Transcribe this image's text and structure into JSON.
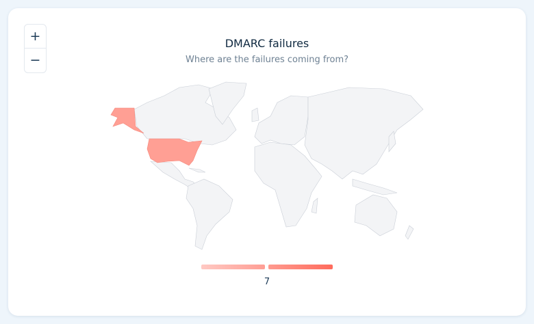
{
  "header": {
    "title": "DMARC failures",
    "subtitle": "Where are the failures coming from?"
  },
  "zoom_controls": {
    "zoom_in": "+",
    "zoom_out": "−"
  },
  "map": {
    "highlighted_regions": [
      "United States",
      "Alaska"
    ],
    "highlight_color": "#ff9f94",
    "land_color": "#f3f4f6",
    "border_color": "#c9ced6"
  },
  "legend": {
    "value": "7",
    "gradient": [
      "#ffc9c3",
      "#ff9a8f",
      "#ff6b5c"
    ]
  }
}
